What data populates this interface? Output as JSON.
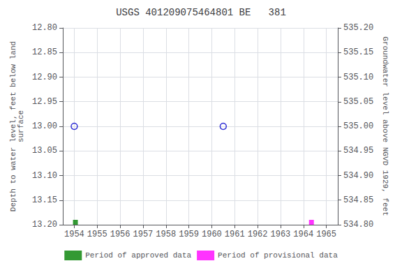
{
  "chart_data": {
    "type": "scatter",
    "title": "USGS 401209075464801 BE   381",
    "ylabel": "Depth to water level, feet below land\nsurface",
    "y2label": "Groundwater level above NGVD 1929, feet",
    "xlim": [
      1953.5,
      1965.5
    ],
    "xticks": [
      1954,
      1955,
      1956,
      1957,
      1958,
      1959,
      1960,
      1961,
      1962,
      1963,
      1964,
      1965
    ],
    "ylim": [
      13.2,
      12.8
    ],
    "yticks": [
      {
        "value": 12.8,
        "label": "12.80"
      },
      {
        "value": 12.85,
        "label": "12.85"
      },
      {
        "value": 12.9,
        "label": "12.90"
      },
      {
        "value": 12.95,
        "label": "12.95"
      },
      {
        "value": 13.0,
        "label": "13.00"
      },
      {
        "value": 13.05,
        "label": "13.05"
      },
      {
        "value": 13.1,
        "label": "13.10"
      },
      {
        "value": 13.15,
        "label": "13.15"
      },
      {
        "value": 13.2,
        "label": "13.20"
      }
    ],
    "y2lim": [
      534.8,
      535.2
    ],
    "y2ticks": [
      {
        "value": 534.8,
        "label": "534.80"
      },
      {
        "value": 534.85,
        "label": "534.85"
      },
      {
        "value": 534.9,
        "label": "534.90"
      },
      {
        "value": 534.95,
        "label": "534.95"
      },
      {
        "value": 535.0,
        "label": "535.00"
      },
      {
        "value": 535.05,
        "label": "535.05"
      },
      {
        "value": 535.1,
        "label": "535.10"
      },
      {
        "value": 535.15,
        "label": "535.15"
      },
      {
        "value": 535.2,
        "label": "535.20"
      }
    ],
    "grid": true,
    "legend": "bottom",
    "series": [
      {
        "x": [
          1954.0,
          1960.5
        ],
        "values": [
          13.0,
          13.0
        ],
        "color": "#0000cc",
        "marker": "open circle"
      },
      {
        "name": "Period of approved data",
        "x": [
          1954.05
        ],
        "values": [
          13.195
        ],
        "color": "#008000",
        "marker": "square"
      },
      {
        "name": "Period of provisional data",
        "x": [
          1964.35
        ],
        "values": [
          13.195
        ],
        "color": "#ff00ff",
        "marker": "square"
      }
    ]
  }
}
